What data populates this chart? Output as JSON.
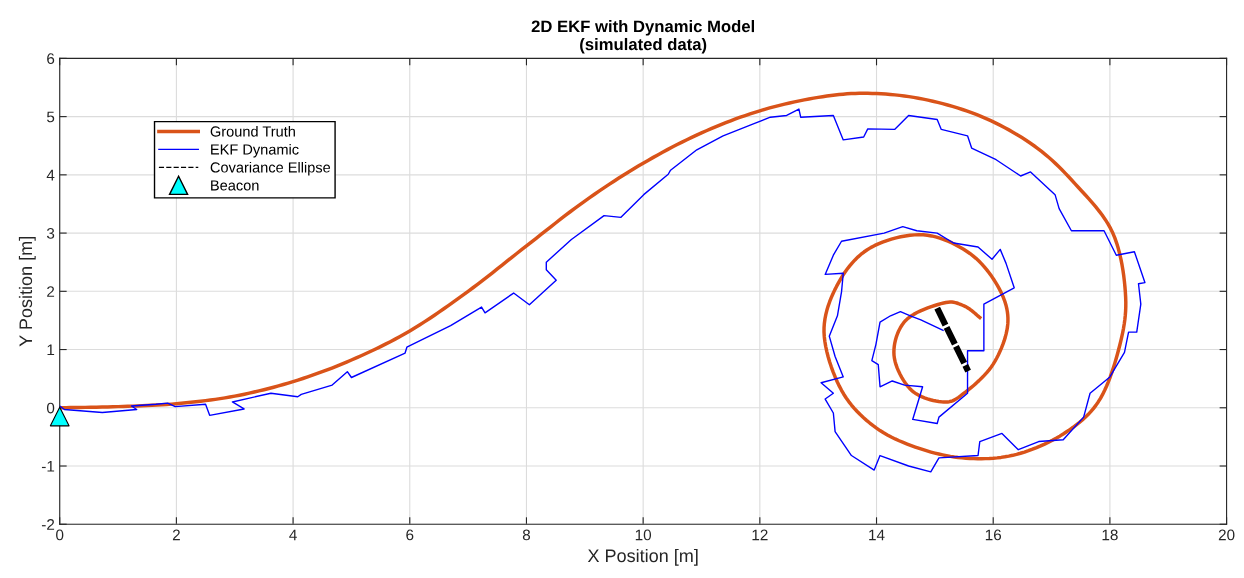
{
  "chart_data": {
    "type": "line",
    "title": "2D EKF with Dynamic Model",
    "subtitle": "(simulated data)",
    "xlabel": "X Position [m]",
    "ylabel": "Y Position [m]",
    "xlim": [
      0,
      20
    ],
    "ylim": [
      -2,
      6
    ],
    "xticks": [
      0,
      2,
      4,
      6,
      8,
      10,
      12,
      14,
      16,
      18,
      20
    ],
    "yticks": [
      -2,
      -1,
      0,
      1,
      2,
      3,
      4,
      5,
      6
    ],
    "grid": true,
    "legend": "top left",
    "series": [
      {
        "name": "Ground Truth",
        "color": "#d95319",
        "line_style": "solid",
        "x": [
          0,
          1,
          2,
          3,
          4,
          5,
          6,
          7,
          8,
          9,
          10,
          11,
          12,
          13,
          13.85,
          14.8,
          15.8,
          16.7,
          17.4,
          18.05,
          18.27,
          18.15,
          17.8,
          17.2,
          16.4,
          15.6,
          14.8,
          14.0,
          13.4,
          13.1,
          13.35,
          13.9,
          14.8,
          15.6,
          16.1,
          16.25,
          16.0,
          15.5,
          15.15,
          14.6,
          14.3,
          14.5,
          15.15,
          15.5,
          15.77
        ],
        "values": [
          0,
          0.02,
          0.07,
          0.2,
          0.45,
          0.82,
          1.32,
          2.0,
          2.78,
          3.55,
          4.2,
          4.72,
          5.1,
          5.33,
          5.4,
          5.3,
          5.0,
          4.5,
          3.85,
          3.0,
          1.9,
          1.0,
          0.1,
          -0.45,
          -0.8,
          -0.87,
          -0.72,
          -0.35,
          0.3,
          1.3,
          2.15,
          2.75,
          2.97,
          2.65,
          2.05,
          1.44,
          0.75,
          0.25,
          0.1,
          0.3,
          0.9,
          1.5,
          1.8,
          1.75,
          1.55
        ]
      },
      {
        "name": "EKF Dynamic",
        "color": "#0000ff",
        "line_style": "solid",
        "x": [
          0,
          0.08,
          0.73,
          1.32,
          1.23,
          1.65,
          1.85,
          1.98,
          2.5,
          2.57,
          3.16,
          2.96,
          3.62,
          4.08,
          4.14,
          4.67,
          4.93,
          5.0,
          5.92,
          5.95,
          6.7,
          7.23,
          7.29,
          7.78,
          8.05,
          8.51,
          8.34,
          8.34,
          8.77,
          9.33,
          9.62,
          10.01,
          10.43,
          10.47,
          10.92,
          11.37,
          11.9,
          12.18,
          12.46,
          12.67,
          12.7,
          13.26,
          13.43,
          13.78,
          13.85,
          14.31,
          14.55,
          15.04,
          15.11,
          15.56,
          15.63,
          16.05,
          16.47,
          16.64,
          17.06,
          17.13,
          17.34,
          17.9,
          18.11,
          18.42,
          18.6,
          18.49,
          18.53,
          18.46,
          18.32,
          18.25,
          18.0,
          17.66,
          17.55,
          17.2,
          16.78,
          16.43,
          16.15,
          15.77,
          15.74,
          15.07,
          14.93,
          14.55,
          14.06,
          13.96,
          13.57,
          13.29,
          13.26,
          13.12,
          13.26,
          13.05,
          13.43,
          13.29,
          13.19,
          13.33,
          13.4,
          13.43,
          13.12,
          13.26,
          13.4,
          14.13,
          14.45,
          14.69,
          15.04,
          15.32,
          15.74,
          15.98,
          16.12,
          16.22,
          16.36,
          15.84,
          15.84,
          15.56,
          15.56,
          15.07,
          15.04,
          14.62,
          14.79,
          14.48,
          14.27,
          14.06,
          14.03,
          13.92,
          13.99,
          14.06,
          14.24,
          14.41,
          14.58,
          14.76,
          15.14
        ],
        "values": [
          0.03,
          -0.03,
          -0.08,
          -0.03,
          0.03,
          0.06,
          0.08,
          0.02,
          0.06,
          -0.13,
          -0.02,
          0.1,
          0.25,
          0.19,
          0.23,
          0.39,
          0.62,
          0.52,
          0.94,
          1.04,
          1.41,
          1.73,
          1.63,
          1.97,
          1.77,
          2.19,
          2.37,
          2.5,
          2.89,
          3.3,
          3.27,
          3.66,
          4.01,
          4.08,
          4.43,
          4.67,
          4.88,
          4.99,
          5.02,
          5.13,
          4.99,
          5.02,
          4.6,
          4.65,
          4.79,
          4.78,
          5.02,
          4.95,
          4.78,
          4.67,
          4.46,
          4.26,
          3.98,
          4.05,
          3.66,
          3.42,
          3.04,
          3.04,
          2.62,
          2.68,
          2.15,
          2.13,
          1.78,
          1.3,
          1.3,
          0.95,
          0.53,
          0.25,
          -0.16,
          -0.55,
          -0.58,
          -0.72,
          -0.44,
          -0.58,
          -0.82,
          -0.86,
          -1.1,
          -1.0,
          -0.82,
          -1.07,
          -0.82,
          -0.41,
          -0.09,
          0.15,
          0.25,
          0.43,
          0.53,
          0.88,
          1.23,
          1.58,
          1.99,
          2.31,
          2.29,
          2.62,
          2.86,
          3.0,
          3.11,
          3.04,
          3.0,
          2.83,
          2.76,
          2.55,
          2.72,
          2.48,
          2.06,
          1.78,
          0.98,
          0.98,
          0.25,
          -0.16,
          -0.27,
          -0.2,
          0.36,
          0.39,
          0.46,
          0.36,
          0.74,
          0.81,
          1.09,
          1.47,
          1.58,
          1.65,
          1.58,
          1.51,
          1.33
        ]
      },
      {
        "name": "Covariance Ellipse",
        "color": "#000000",
        "line_style": "dashed",
        "x": [
          15.04,
          15.57
        ],
        "values": [
          1.71,
          0.63
        ]
      },
      {
        "name": "Beacon",
        "color": "#00ffff",
        "type": "scatter",
        "marker": "triangle",
        "x": [
          0
        ],
        "values": [
          -0.15
        ]
      }
    ]
  }
}
